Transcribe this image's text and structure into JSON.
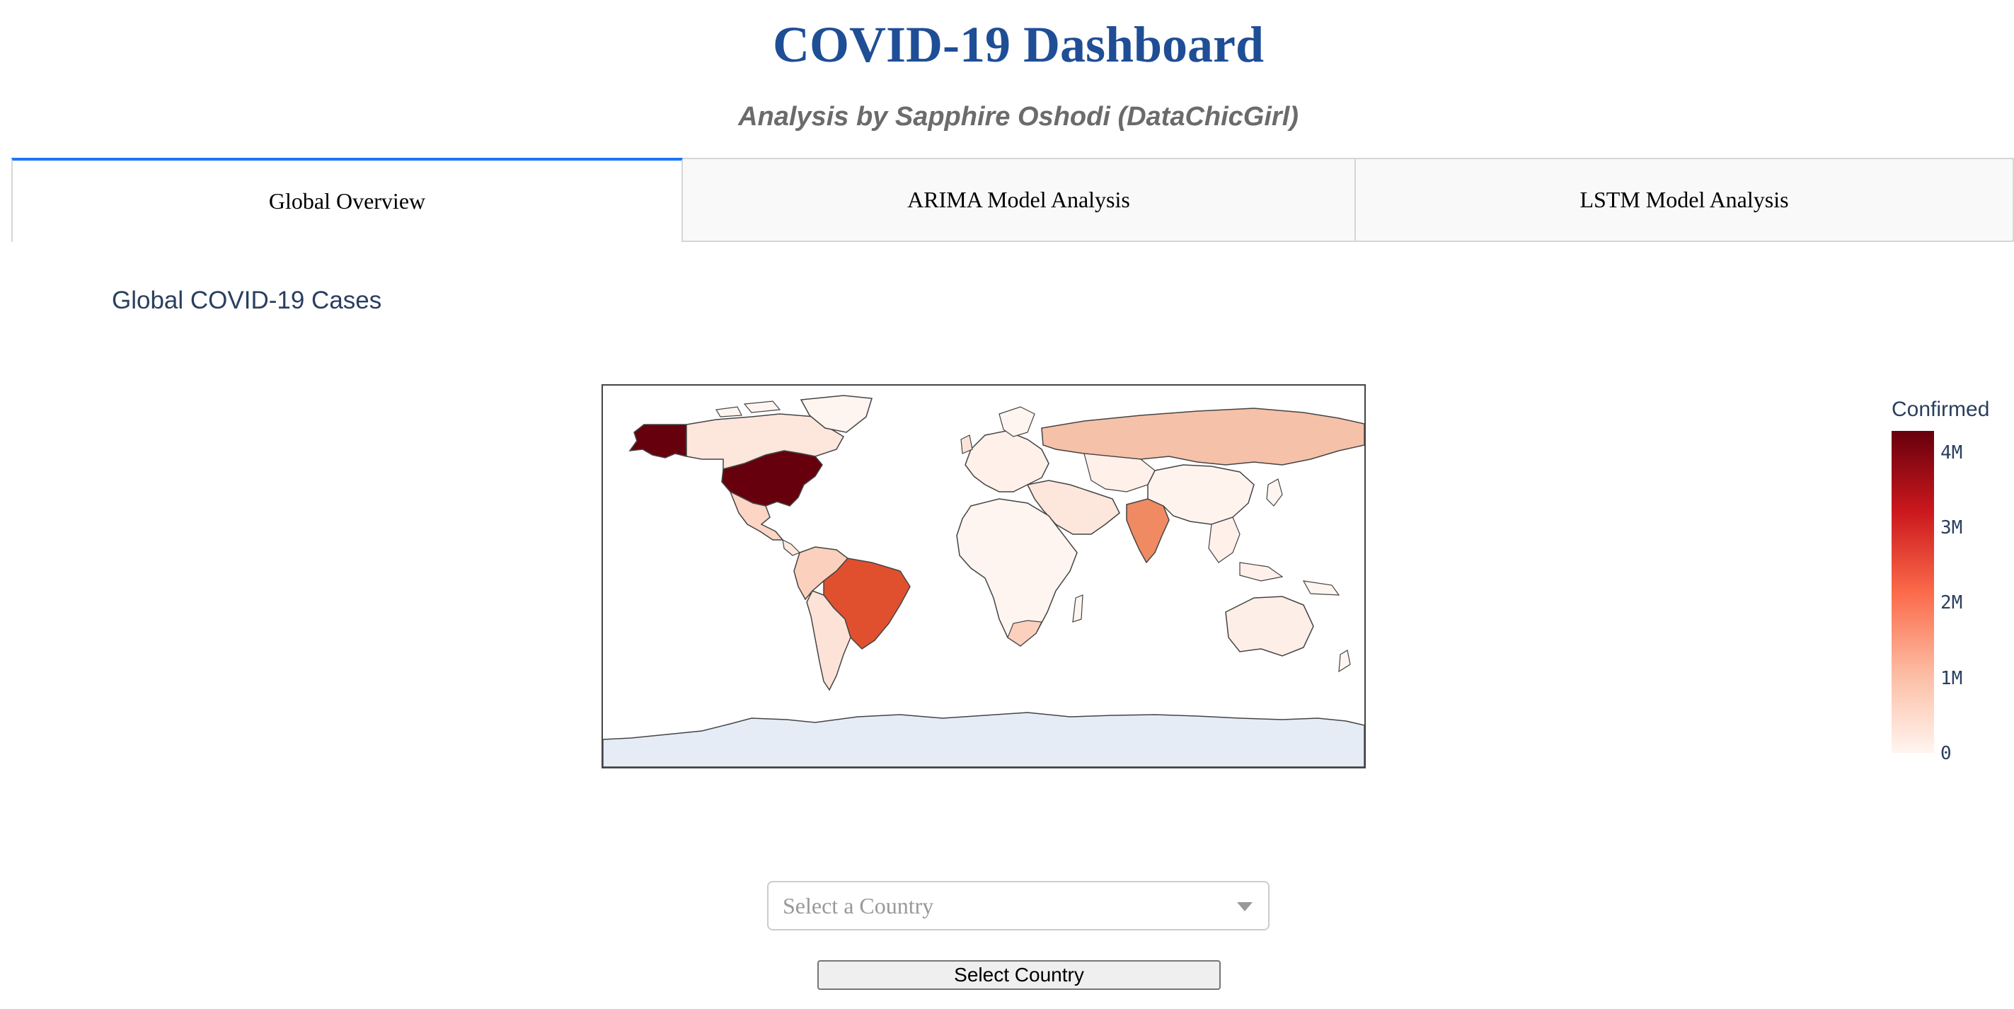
{
  "header": {
    "title": "COVID-19 Dashboard",
    "subtitle": "Analysis by Sapphire Oshodi (DataChicGirl)"
  },
  "tabs": [
    {
      "label": "Global Overview",
      "active": true
    },
    {
      "label": "ARIMA Model Analysis",
      "active": false
    },
    {
      "label": "LSTM Model Analysis",
      "active": false
    }
  ],
  "figure": {
    "title": "Global COVID-19 Cases",
    "colorbar": {
      "title": "Confirmed",
      "ticks": [
        "4M",
        "3M",
        "2M",
        "1M",
        "0"
      ],
      "tick_values": [
        4000000,
        3000000,
        2000000,
        1000000,
        0
      ],
      "colorscale": [
        "#fff5f0",
        "#fcbba1",
        "#fb6a4a",
        "#cb181d",
        "#67000d"
      ]
    }
  },
  "chart_data": {
    "type": "choropleth",
    "title": "Global COVID-19 Cases",
    "colorbar_title": "Confirmed",
    "range": [
      0,
      4300000
    ],
    "regions": [
      {
        "name": "United States",
        "value": 4300000
      },
      {
        "name": "Brazil",
        "value": 2400000
      },
      {
        "name": "India",
        "value": 1700000
      },
      {
        "name": "Russia",
        "value": 830000
      }
    ]
  },
  "controls": {
    "dropdown_placeholder": "Select a Country",
    "button_label": "Select Country"
  }
}
